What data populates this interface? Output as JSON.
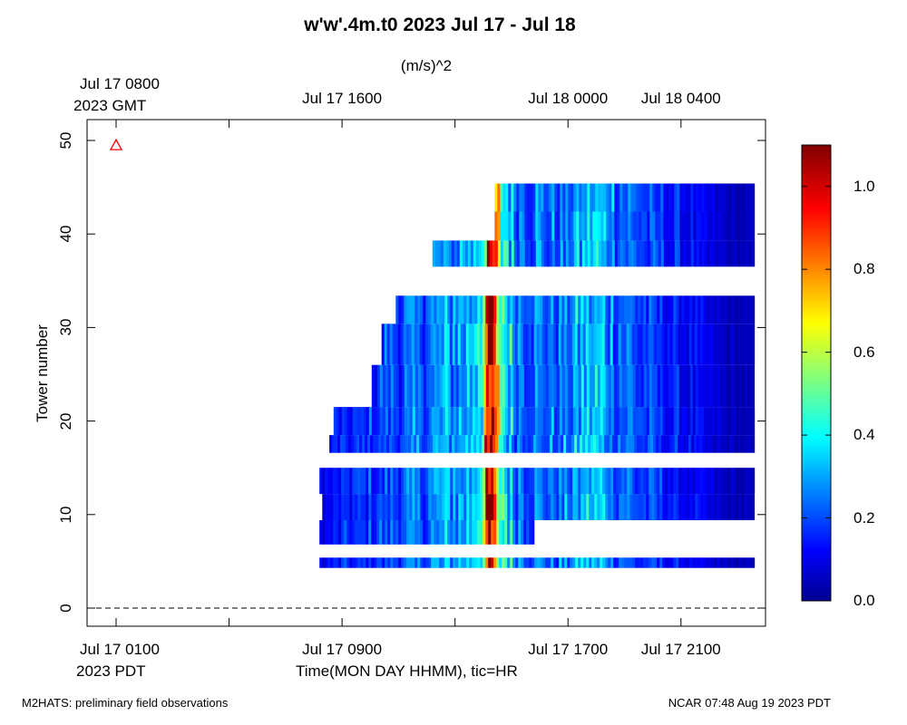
{
  "chart_data": {
    "type": "heatmap",
    "title": "w'w'.4m.t0 2023 Jul 17 - Jul 18",
    "colorbar_label": "(m/s)^2",
    "xlabel": "Time(MON DAY HHMM), tic=HR",
    "ylabel": "Tower number",
    "x_unit": "hours since Jul 17 0000 PDT",
    "xlim": [
      0,
      23.6
    ],
    "ylim": [
      -3,
      52
    ],
    "zlim": [
      0,
      1.1
    ],
    "grid": false,
    "legend": "colorbar right",
    "x_ticks_top": [
      {
        "hour": 1,
        "line1": "Jul 17 0800",
        "line2": "2023 GMT"
      },
      {
        "hour": 9,
        "line1": "Jul 17 1600",
        "line2": ""
      },
      {
        "hour": 17,
        "line1": "Jul 18 0000",
        "line2": ""
      },
      {
        "hour": 21,
        "line1": "Jul 18 0400",
        "line2": ""
      }
    ],
    "x_ticks_bottom": [
      {
        "hour": 1,
        "line1": "Jul 17 0100",
        "line2": "2023 PDT"
      },
      {
        "hour": 9,
        "line1": "Jul 17 0900",
        "line2": ""
      },
      {
        "hour": 17,
        "line1": "Jul 17 1700",
        "line2": ""
      },
      {
        "hour": 21,
        "line1": "Jul 17 2100",
        "line2": ""
      }
    ],
    "minor_x_ticks_hours": [
      1,
      5,
      9,
      13,
      17,
      21
    ],
    "y_ticks": [
      0,
      10,
      20,
      30,
      40,
      50
    ],
    "colorbar_ticks": [
      "0.0",
      "0.2",
      "0.4",
      "0.6",
      "0.8",
      "1.0"
    ],
    "colorbar_tick_values": [
      0.0,
      0.2,
      0.4,
      0.6,
      0.8,
      1.0
    ],
    "dashed_reference_y": 0,
    "marker": {
      "hour": 1,
      "tower": 49.5,
      "symbol": "triangle",
      "color": "#ff0000"
    },
    "tower_bands": [
      {
        "y0": 4.3,
        "y1": 5.4,
        "start_hour": 8.2,
        "end_hour": 23.6
      },
      {
        "y0": 6.8,
        "y1": 9.4,
        "start_hour": 8.2,
        "end_hour": 15.8
      },
      {
        "y0": 9.4,
        "y1": 12.2,
        "start_hour": 8.3,
        "end_hour": 23.6
      },
      {
        "y0": 12.2,
        "y1": 15.0,
        "start_hour": 8.2,
        "end_hour": 23.6
      },
      {
        "y0": 16.6,
        "y1": 18.5,
        "start_hour": 8.55,
        "end_hour": 23.6
      },
      {
        "y0": 18.5,
        "y1": 21.5,
        "start_hour": 8.7,
        "end_hour": 23.6
      },
      {
        "y0": 21.5,
        "y1": 26.0,
        "start_hour": 10.05,
        "end_hour": 23.6
      },
      {
        "y0": 26.0,
        "y1": 30.4,
        "start_hour": 10.4,
        "end_hour": 23.6
      },
      {
        "y0": 30.4,
        "y1": 33.4,
        "start_hour": 10.9,
        "end_hour": 23.6
      },
      {
        "y0": 36.5,
        "y1": 39.3,
        "start_hour": 12.2,
        "end_hour": 23.6
      },
      {
        "y0": 39.3,
        "y1": 42.4,
        "start_hour": 14.4,
        "end_hour": 23.6
      },
      {
        "y0": 42.4,
        "y1": 45.4,
        "start_hour": 14.4,
        "end_hour": 23.6
      }
    ],
    "intensity_profile": [
      {
        "hour": 8.2,
        "value": 0.12
      },
      {
        "hour": 9.5,
        "value": 0.18
      },
      {
        "hour": 11.0,
        "value": 0.22
      },
      {
        "hour": 12.5,
        "value": 0.28
      },
      {
        "hour": 13.5,
        "value": 0.35
      },
      {
        "hour": 14.05,
        "value": 0.7
      },
      {
        "hour": 14.2,
        "value": 1.1
      },
      {
        "hour": 14.35,
        "value": 0.6
      },
      {
        "hour": 15.0,
        "value": 0.3
      },
      {
        "hour": 16.5,
        "value": 0.24
      },
      {
        "hour": 17.8,
        "value": 0.35
      },
      {
        "hour": 19.5,
        "value": 0.2
      },
      {
        "hour": 21.0,
        "value": 0.14
      },
      {
        "hour": 22.5,
        "value": 0.07
      },
      {
        "hour": 23.6,
        "value": 0.05
      }
    ]
  },
  "footer": {
    "left": "M2HATS: preliminary field observations",
    "right": "NCAR 07:48 Aug 19 2023 PDT"
  }
}
